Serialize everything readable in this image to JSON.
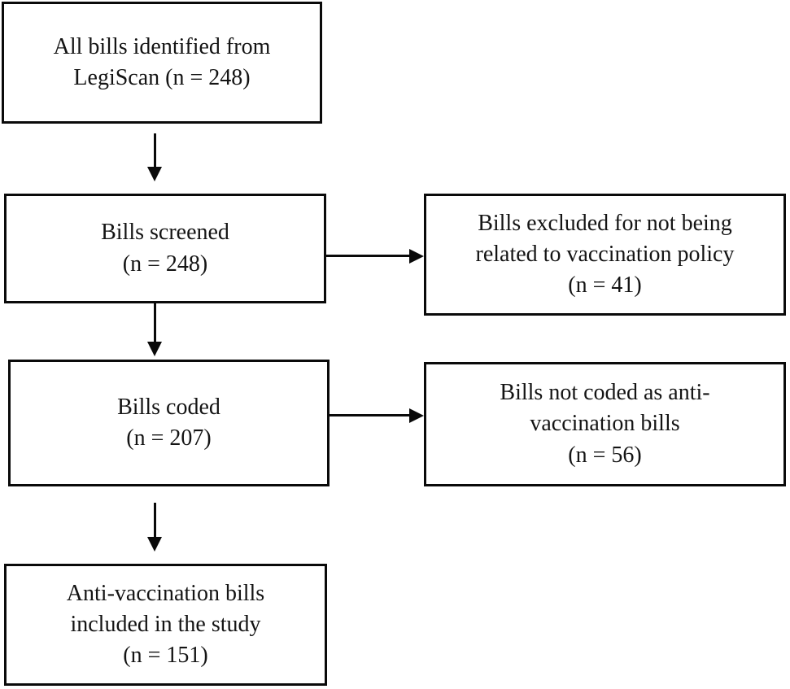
{
  "diagram": {
    "type": "flowchart",
    "colors": {
      "line": "#0a0a0a",
      "text": "#141414",
      "background": "#ffffff"
    },
    "boxes": [
      {
        "id": "identified",
        "lines": [
          "All bills identified from",
          "LegiScan (n = 248)"
        ],
        "n": 248
      },
      {
        "id": "screened",
        "lines": [
          "Bills screened",
          "(n = 248)"
        ],
        "n": 248
      },
      {
        "id": "excluded",
        "lines": [
          "Bills excluded for not being",
          "related to vaccination policy",
          "(n = 41)"
        ],
        "n": 41
      },
      {
        "id": "coded",
        "lines": [
          "Bills coded",
          "(n = 207)"
        ],
        "n": 207
      },
      {
        "id": "not_coded",
        "lines": [
          "Bills not coded as anti-",
          "vaccination bills",
          "(n = 56)"
        ],
        "n": 56
      },
      {
        "id": "included",
        "lines": [
          "Anti-vaccination bills",
          "included in the study",
          "(n = 151)"
        ],
        "n": 151
      }
    ],
    "arrows": [
      {
        "from": "identified",
        "to": "screened",
        "direction": "down"
      },
      {
        "from": "screened",
        "to": "excluded",
        "direction": "right"
      },
      {
        "from": "screened",
        "to": "coded",
        "direction": "down"
      },
      {
        "from": "coded",
        "to": "not_coded",
        "direction": "right"
      },
      {
        "from": "coded",
        "to": "included",
        "direction": "down"
      }
    ]
  }
}
